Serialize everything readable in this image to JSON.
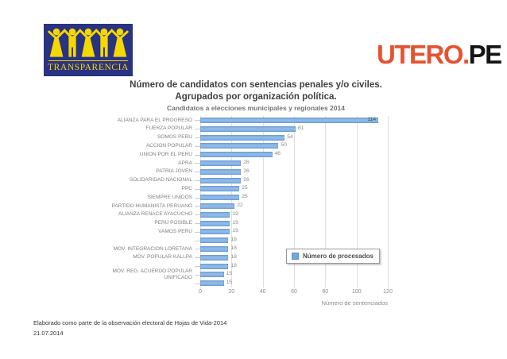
{
  "logos": {
    "transparencia": {
      "text": "TRANSPARENCIA",
      "bg_color": "#2A3282",
      "fg_color": "#F5D800"
    },
    "utero": {
      "text_primary": "UTERO",
      "text_dot": ".",
      "text_secondary": "PE",
      "primary_color": "#E4532F",
      "secondary_color": "#141414"
    }
  },
  "chart_data": {
    "type": "bar",
    "orientation": "horizontal",
    "title_line1": "Número de candidatos con sentencias penales y/o civiles.",
    "title_line2": "Agrupados por organización política.",
    "subtitle": "Candidatos a elecciones municipales y regionales 2014",
    "xlabel": "Número de sentenciados",
    "legend_label": "Número de procesados",
    "legend_position": "inside-right",
    "grid": "vertical",
    "x_ticks": [
      0,
      20,
      40,
      60,
      80,
      100,
      120
    ],
    "xlim": [
      0,
      120
    ],
    "bar_color": "#74A6DC",
    "categories": [
      "ALIANZA PARA EL PROGRESO",
      "FUERZA POPULAR",
      "SOMOS PERU",
      "ACCION POPULAR",
      "UNION POR EL PERU",
      "APRA",
      "PATRIA JOVEN",
      "SOLIDARIDAD NACIONAL",
      "PPC",
      "SIEMPRE UNIDOS",
      "PARTIDO HUMANISTA PERUANO",
      "ALIANZA RENACE AYACUCHO",
      "PERU POSIBLE",
      "VAMOS PERU",
      "",
      "MOV. INTEGRACION LORETANA",
      "MOV. POPULAR KALLPA",
      "",
      "MOV. REG. ACUERDO POPULAR UNIFICADO",
      ""
    ],
    "values": [
      114,
      61,
      54,
      50,
      46,
      26,
      26,
      26,
      25,
      25,
      22,
      19,
      19,
      19,
      18,
      18,
      18,
      18,
      15,
      15
    ]
  },
  "footer": {
    "line1": "Elaborado como parte de la observación electoral de Hojas de Vida-2014",
    "line2": "21.07.2014"
  }
}
